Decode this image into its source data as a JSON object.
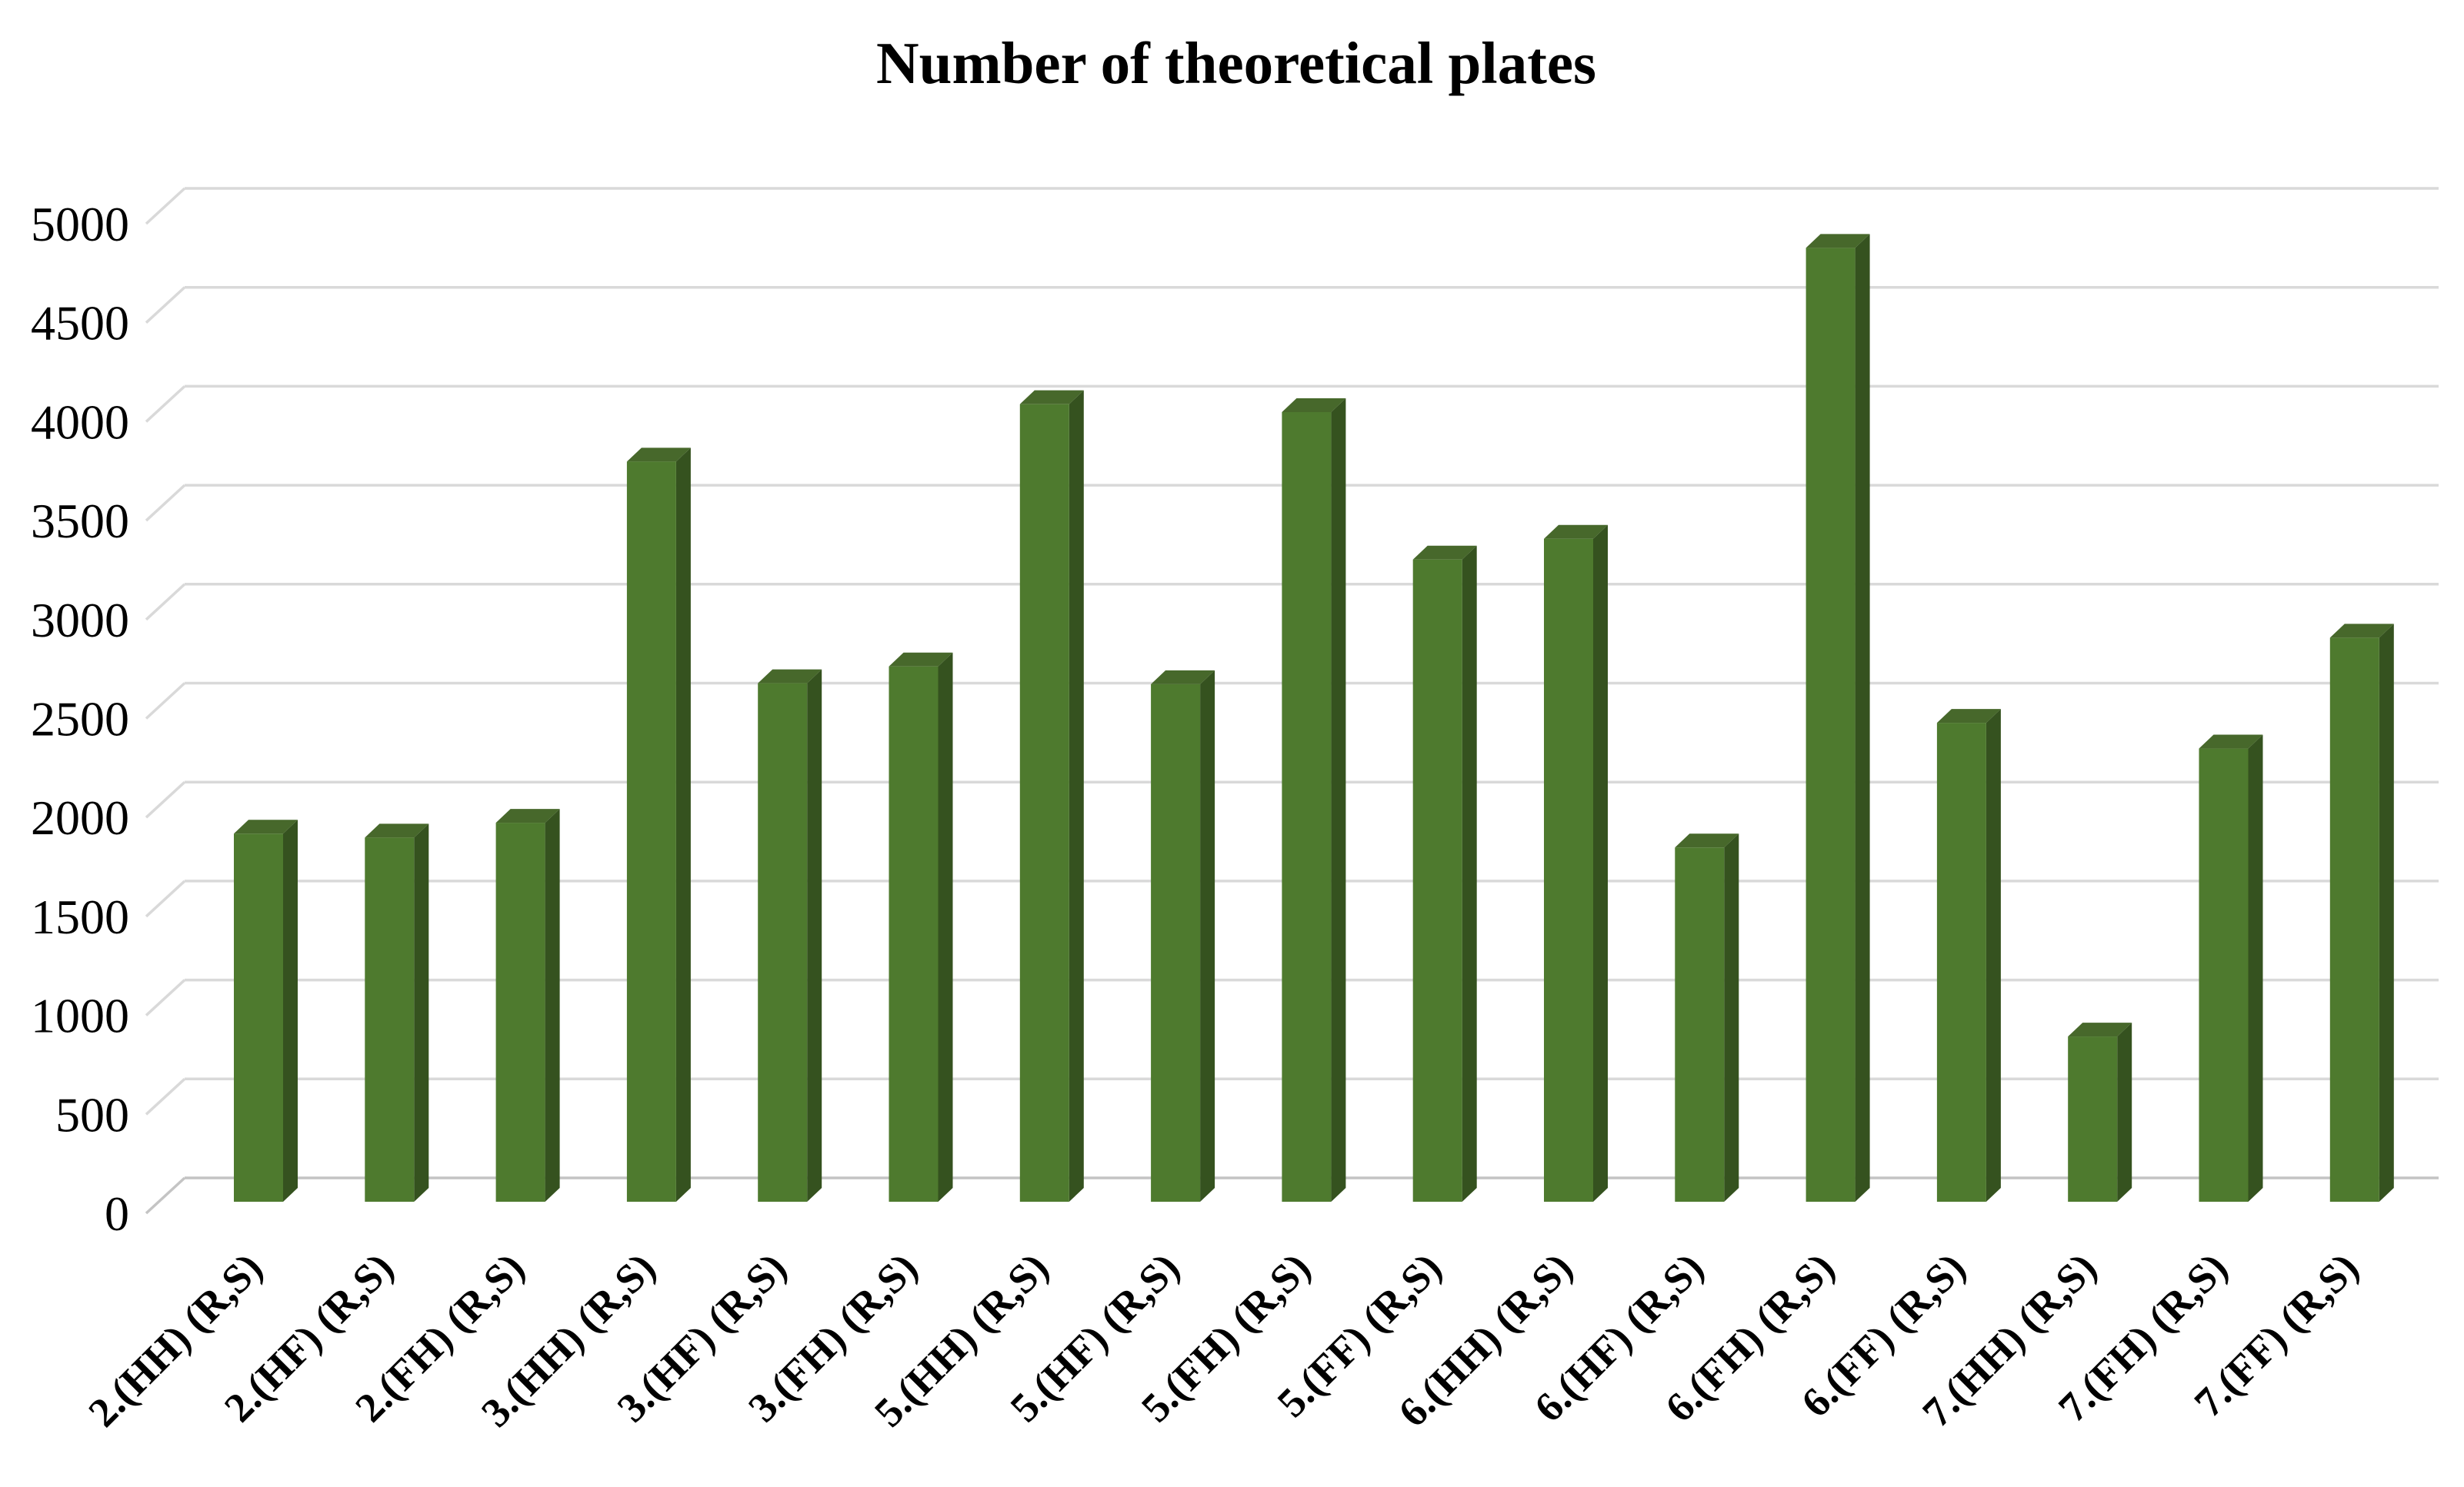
{
  "title": "Number of theoretical plates",
  "y_axis": {
    "tick_labels": [
      "0",
      "500",
      "1000",
      "1500",
      "2000",
      "2500",
      "3000",
      "3500",
      "4000",
      "4500",
      "5000"
    ]
  },
  "colors": {
    "bar_front": "#4e7a2e",
    "bar_top": "#47682b",
    "bar_side": "#35521f",
    "gridline": "#d9d9d9",
    "baseline": "#c4c4c4",
    "text": "#000000",
    "background": "#ffffff"
  },
  "chart_data": {
    "type": "bar",
    "style": "3d-column",
    "title": "Number of theoretical plates",
    "categories": [
      "2.(HH) (R,S)",
      "2.(HF) (R,S)",
      "2.(FH) (R,S)",
      "3.(HH) (R,S)",
      "3.(HF) (R,S)",
      "3.(FH) (R,S)",
      "5.(HH) (R,S)",
      "5.(HF) (R,S)",
      "5.(FH) (R,S)",
      "5.(FF) (R,S)",
      "6.(HH) (R,S)",
      "6.(HF) (R,S)",
      "6.(FH) (R,S)",
      "6.(FF) (R,S)",
      "7.(HH) (R,S)",
      "7.(FH) (R,S)",
      "7.(FF) (R,S)"
    ],
    "values": [
      1860,
      1840,
      1915,
      3740,
      2620,
      2705,
      4030,
      2615,
      3990,
      3245,
      3350,
      1790,
      4820,
      2420,
      835,
      2290,
      2850
    ],
    "xlabel": "",
    "ylabel": "",
    "ylim": [
      0,
      5000
    ],
    "ytick_step": 500,
    "grid": true,
    "legend": false,
    "bar_color": "#4e7a2e"
  }
}
